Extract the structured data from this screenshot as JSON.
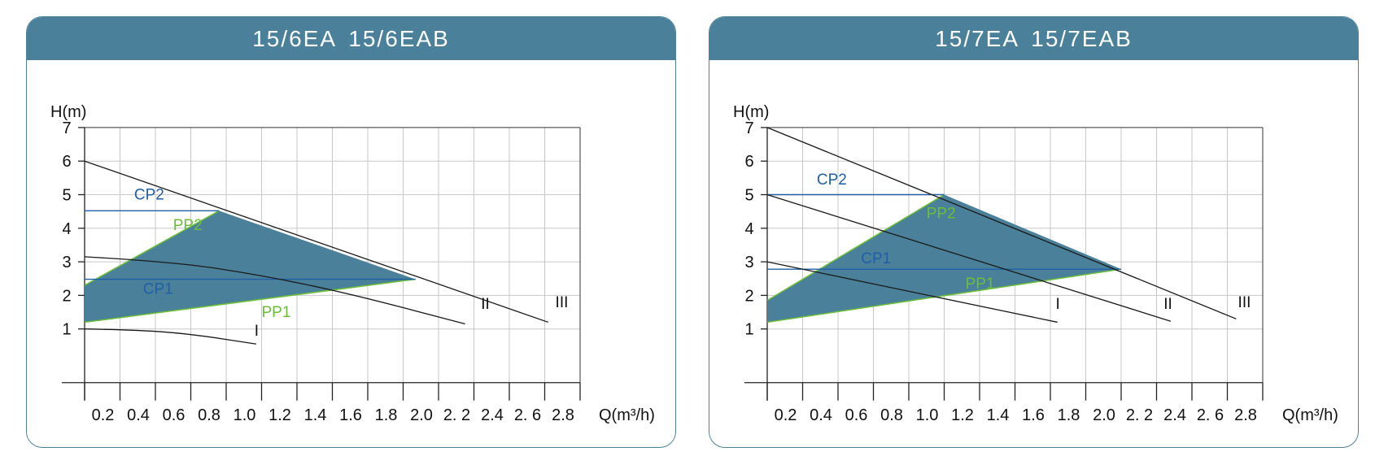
{
  "colors": {
    "header_bg": "#4a8099",
    "border": "#4e8298",
    "region_fill": "#4a8099",
    "cp_line": "#1f5fa8",
    "pp_line": "#6cbf3a",
    "curve": "#1a1a1a",
    "grid": "#c8c8c8"
  },
  "panels": [
    {
      "title": "15/6EA  15/6EAB"
    },
    {
      "title": "15/7EA  15/7EAB"
    }
  ],
  "chart_data": [
    {
      "type": "line",
      "title": "15/6EA  15/6EAB",
      "xlabel": "Q(m³/h)",
      "ylabel": "H(m)",
      "xlim": [
        0,
        2.8
      ],
      "ylim": [
        -0.6,
        7
      ],
      "grid": true,
      "xticks": [
        {
          "v": 0.2,
          "label": "0.2"
        },
        {
          "v": 0.4,
          "label": "0.4"
        },
        {
          "v": 0.6,
          "label": "0.6"
        },
        {
          "v": 0.8,
          "label": "0.8"
        },
        {
          "v": 1.0,
          "label": "1.0"
        },
        {
          "v": 1.2,
          "label": "1.2"
        },
        {
          "v": 1.4,
          "label": "1.4"
        },
        {
          "v": 1.6,
          "label": "1.6"
        },
        {
          "v": 1.8,
          "label": "1.8"
        },
        {
          "v": 2.0,
          "label": "2.0"
        },
        {
          "v": 2.2,
          "label": "2. 2"
        },
        {
          "v": 2.4,
          "label": "2.4"
        },
        {
          "v": 2.6,
          "label": "2. 6"
        },
        {
          "v": 2.8,
          "label": "2.8"
        }
      ],
      "yticks": [
        {
          "v": 1,
          "label": "1"
        },
        {
          "v": 2,
          "label": "2"
        },
        {
          "v": 3,
          "label": "3"
        },
        {
          "v": 4,
          "label": "4"
        },
        {
          "v": 5,
          "label": "5"
        },
        {
          "v": 6,
          "label": "6"
        },
        {
          "v": 7,
          "label": "7"
        }
      ],
      "region": [
        [
          0,
          1.2
        ],
        [
          0,
          2.3
        ],
        [
          0.76,
          4.52
        ],
        [
          1.87,
          2.48
        ]
      ],
      "curves": [
        {
          "name": "I",
          "points": [
            [
              0,
              1.0
            ],
            [
              0.3,
              0.97
            ],
            [
              0.6,
              0.85
            ],
            [
              0.97,
              0.55
            ]
          ],
          "label_at": [
            0.96,
            0.8
          ]
        },
        {
          "name": "II",
          "points": [
            [
              0,
              3.15
            ],
            [
              0.5,
              3.0
            ],
            [
              1.0,
              2.6
            ],
            [
              1.5,
              2.05
            ],
            [
              2.15,
              1.15
            ]
          ],
          "label_at": [
            2.24,
            1.6
          ]
        },
        {
          "name": "III",
          "points": [
            [
              0,
              6.0
            ],
            [
              2.62,
              1.2
            ]
          ],
          "label_at": [
            2.66,
            1.65
          ]
        }
      ],
      "cp_lines": [
        {
          "name": "CP2",
          "y": 4.52,
          "x1": 0,
          "x2": 0.76,
          "label_at": [
            0.28,
            4.85
          ]
        },
        {
          "name": "CP1",
          "y": 2.48,
          "x1": 0,
          "x2": 1.87,
          "label_at": [
            0.33,
            2.05
          ]
        }
      ],
      "pp_lines": [
        {
          "name": "PP2",
          "from": [
            0,
            2.3
          ],
          "to": [
            0.76,
            4.52
          ],
          "label_at": [
            0.5,
            3.95
          ]
        },
        {
          "name": "PP1",
          "from": [
            0,
            1.2
          ],
          "to": [
            1.87,
            2.48
          ],
          "label_at": [
            1.0,
            1.35
          ]
        }
      ]
    },
    {
      "type": "line",
      "title": "15/7EA  15/7EAB",
      "xlabel": "Q(m³/h)",
      "ylabel": "H(m)",
      "xlim": [
        0,
        2.8
      ],
      "ylim": [
        -0.6,
        7
      ],
      "grid": true,
      "xticks": [
        {
          "v": 0.2,
          "label": "0.2"
        },
        {
          "v": 0.4,
          "label": "0.4"
        },
        {
          "v": 0.6,
          "label": "0.6"
        },
        {
          "v": 0.8,
          "label": "0.8"
        },
        {
          "v": 1.0,
          "label": "1.0"
        },
        {
          "v": 1.2,
          "label": "1.2"
        },
        {
          "v": 1.4,
          "label": "1.4"
        },
        {
          "v": 1.6,
          "label": "1.6"
        },
        {
          "v": 1.8,
          "label": "1.8"
        },
        {
          "v": 2.0,
          "label": "2.0"
        },
        {
          "v": 2.2,
          "label": "2. 2"
        },
        {
          "v": 2.4,
          "label": "2.4"
        },
        {
          "v": 2.6,
          "label": "2. 6"
        },
        {
          "v": 2.8,
          "label": "2.8"
        }
      ],
      "yticks": [
        {
          "v": 1,
          "label": "1"
        },
        {
          "v": 2,
          "label": "2"
        },
        {
          "v": 3,
          "label": "3"
        },
        {
          "v": 4,
          "label": "4"
        },
        {
          "v": 5,
          "label": "5"
        },
        {
          "v": 6,
          "label": "6"
        },
        {
          "v": 7,
          "label": "7"
        }
      ],
      "region": [
        [
          0,
          1.2
        ],
        [
          0,
          1.85
        ],
        [
          1.0,
          5.0
        ],
        [
          2.0,
          2.78
        ]
      ],
      "curves": [
        {
          "name": "I",
          "points": [
            [
              0,
              3.0
            ],
            [
              1.64,
              1.2
            ]
          ],
          "label_at": [
            1.63,
            1.6
          ]
        },
        {
          "name": "II",
          "points": [
            [
              0,
              5.0
            ],
            [
              2.28,
              1.23
            ]
          ],
          "label_at": [
            2.24,
            1.6
          ]
        },
        {
          "name": "III",
          "points": [
            [
              0,
              7.0
            ],
            [
              2.65,
              1.3
            ]
          ],
          "label_at": [
            2.66,
            1.65
          ]
        }
      ],
      "cp_lines": [
        {
          "name": "CP2",
          "y": 5.0,
          "x1": 0,
          "x2": 1.0,
          "label_at": [
            0.28,
            5.3
          ]
        },
        {
          "name": "CP1",
          "y": 2.78,
          "x1": 0,
          "x2": 2.0,
          "label_at": [
            0.53,
            2.95
          ]
        }
      ],
      "pp_lines": [
        {
          "name": "PP2",
          "from": [
            0,
            1.85
          ],
          "to": [
            1.0,
            5.0
          ],
          "label_at": [
            0.9,
            4.3
          ]
        },
        {
          "name": "PP1",
          "from": [
            0,
            1.2
          ],
          "to": [
            2.0,
            2.78
          ],
          "label_at": [
            1.12,
            2.2
          ]
        }
      ]
    }
  ]
}
